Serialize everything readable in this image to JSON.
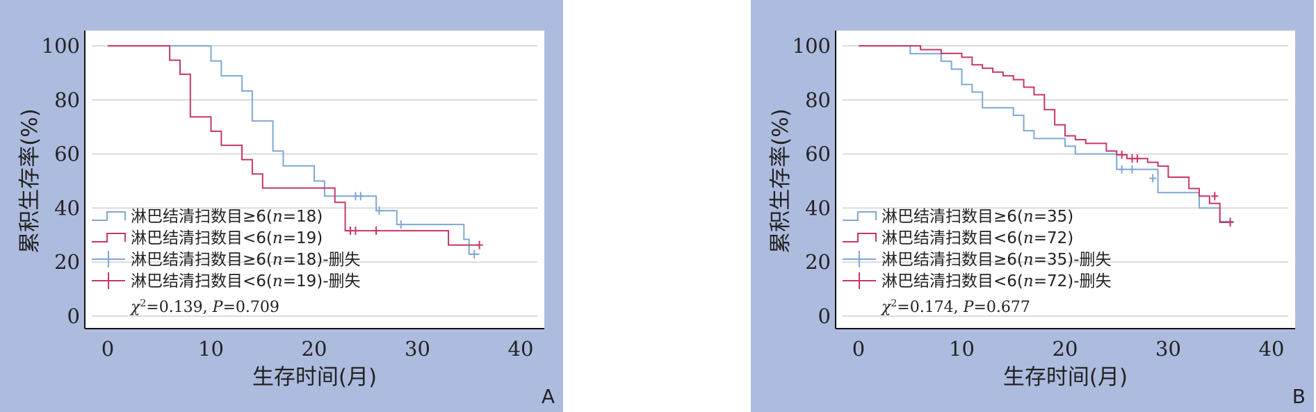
{
  "colors": {
    "panel_bg": "#adbbdf",
    "plot_bg": "#ffffff",
    "grid": "#d0d0d0",
    "series_ge6": "#7ea7d6",
    "series_lt6": "#c8356a"
  },
  "chart_data": [
    {
      "panel": "A",
      "type": "line",
      "step": true,
      "xlabel": "生存时间(月)",
      "ylabel": "累积生存率(%)",
      "xticks": [
        0,
        10,
        20,
        30,
        40
      ],
      "yticks": [
        0,
        20,
        40,
        60,
        80,
        100
      ],
      "xlim": [
        -2,
        42
      ],
      "ylim": [
        -4,
        104
      ],
      "grid": true,
      "legend_position": "bottom-left",
      "legend": [
        "淋巴结清扫数目≥6(n=18)",
        "淋巴结清扫数目<6(n=19)",
        "淋巴结清扫数目≥6(n=18)-删失",
        "淋巴结清扫数目<6(n=19)-删失"
      ],
      "stat": "χ²=0.139, P=0.709",
      "series": [
        {
          "name": "淋巴结清扫数目≥6(n=18)",
          "color": "#7ea7d6",
          "x": [
            0,
            9,
            10,
            11,
            13,
            14,
            16,
            17,
            20,
            21,
            24,
            26,
            28,
            34.5,
            35,
            36
          ],
          "y": [
            100,
            100,
            94.4,
            88.9,
            83.3,
            72.2,
            61.1,
            55.6,
            50,
            44.4,
            44.4,
            39,
            33.9,
            28.4,
            22.9,
            22.9
          ],
          "censored": [
            [
              24,
              44.4
            ],
            [
              24.5,
              44.4
            ],
            [
              26.3,
              39
            ],
            [
              28.4,
              33.9
            ],
            [
              35.5,
              22.9
            ]
          ]
        },
        {
          "name": "淋巴结清扫数目<6(n=19)",
          "color": "#c8356a",
          "x": [
            0,
            6,
            7,
            8,
            10,
            11,
            13,
            14,
            15,
            22,
            23,
            26,
            33,
            36
          ],
          "y": [
            100,
            94.7,
            89.5,
            73.7,
            68.4,
            63.2,
            57.9,
            52.6,
            47.4,
            42.1,
            31.6,
            31.6,
            26.3,
            26.3
          ],
          "censored": [
            [
              23.5,
              31.6
            ],
            [
              24,
              31.6
            ],
            [
              26,
              31.6
            ],
            [
              36,
              26.3
            ]
          ]
        }
      ]
    },
    {
      "panel": "B",
      "type": "line",
      "step": true,
      "xlabel": "生存时间(月)",
      "ylabel": "累积生存率(%)",
      "xticks": [
        0,
        10,
        20,
        30,
        40
      ],
      "yticks": [
        0,
        20,
        40,
        60,
        80,
        100
      ],
      "xlim": [
        -2,
        42
      ],
      "ylim": [
        -4,
        104
      ],
      "grid": true,
      "legend_position": "bottom-left",
      "legend": [
        "淋巴结清扫数目≥6(n=35)",
        "淋巴结清扫数目<6(n=72)",
        "淋巴结清扫数目≥6(n=35)-删失",
        "淋巴结清扫数目<6(n=72)-删失"
      ],
      "stat": "χ²=0.174, P=0.677",
      "series": [
        {
          "name": "淋巴结清扫数目≥6(n=35)",
          "color": "#7ea7d6",
          "x": [
            0,
            5,
            8,
            9,
            10,
            11,
            12,
            15,
            16,
            17,
            20,
            21,
            25,
            29,
            33,
            35,
            36
          ],
          "y": [
            100,
            97.1,
            94.3,
            91.4,
            85.7,
            82.9,
            77.1,
            74.3,
            68.6,
            65.7,
            62.9,
            60,
            54.3,
            45.7,
            40,
            35,
            35
          ],
          "censored": [
            [
              25.5,
              54.3
            ],
            [
              26.5,
              54.3
            ],
            [
              28.5,
              51
            ],
            [
              36,
              35
            ]
          ]
        },
        {
          "name": "淋巴结清扫数目<6(n=72)",
          "color": "#c8356a",
          "x": [
            0,
            6,
            8,
            10,
            11,
            12,
            13,
            14,
            15,
            16,
            17,
            18,
            19,
            20,
            21,
            22,
            24,
            25,
            26,
            28,
            29,
            30,
            32,
            33,
            34,
            35,
            36
          ],
          "y": [
            100,
            98.6,
            97.2,
            95.8,
            93,
            91.7,
            90.3,
            88.9,
            87.5,
            84.7,
            81.9,
            76.4,
            70.8,
            66.7,
            65.3,
            63.9,
            61.1,
            59.7,
            58.3,
            56.9,
            55.5,
            51.4,
            47.2,
            44.4,
            41.7,
            34.7,
            34.7
          ],
          "censored": [
            [
              25.5,
              59.7
            ],
            [
              26.5,
              58.3
            ],
            [
              27,
              58.3
            ],
            [
              34.5,
              44.4
            ],
            [
              36,
              34.7
            ]
          ]
        }
      ]
    }
  ]
}
